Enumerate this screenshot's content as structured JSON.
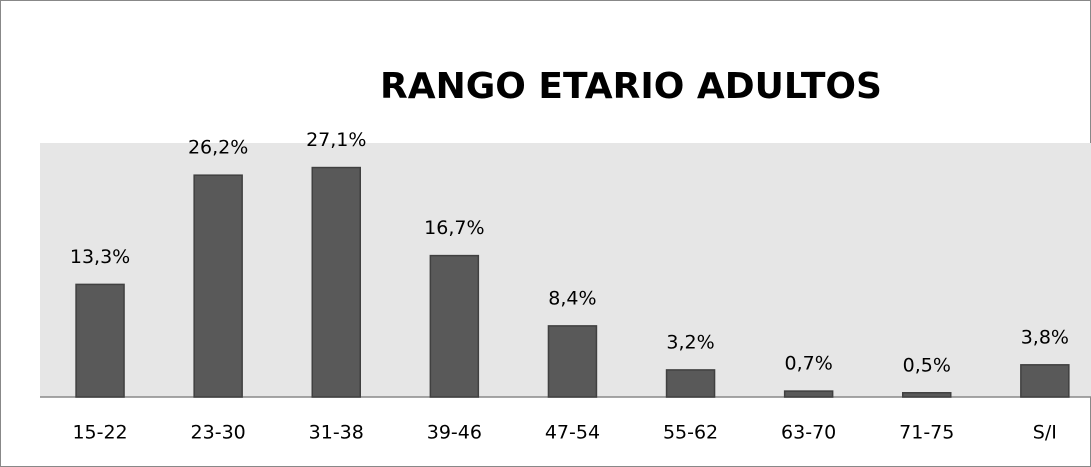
{
  "chart_data": {
    "type": "bar",
    "title": "RANGO ETARIO ADULTOS",
    "categories": [
      "15-22",
      "23-30",
      "31-38",
      "39-46",
      "47-54",
      "55-62",
      "63-70",
      "71-75",
      "S/I"
    ],
    "values": [
      13.3,
      26.2,
      27.1,
      16.7,
      8.4,
      3.2,
      0.7,
      0.5,
      3.8
    ],
    "value_labels": [
      "13,3%",
      "26,2%",
      "27,1%",
      "16,7%",
      "8,4%",
      "3,2%",
      "0,7%",
      "0,5%",
      "3,8%"
    ],
    "color": "#595959",
    "ylim": [
      0,
      30
    ]
  }
}
